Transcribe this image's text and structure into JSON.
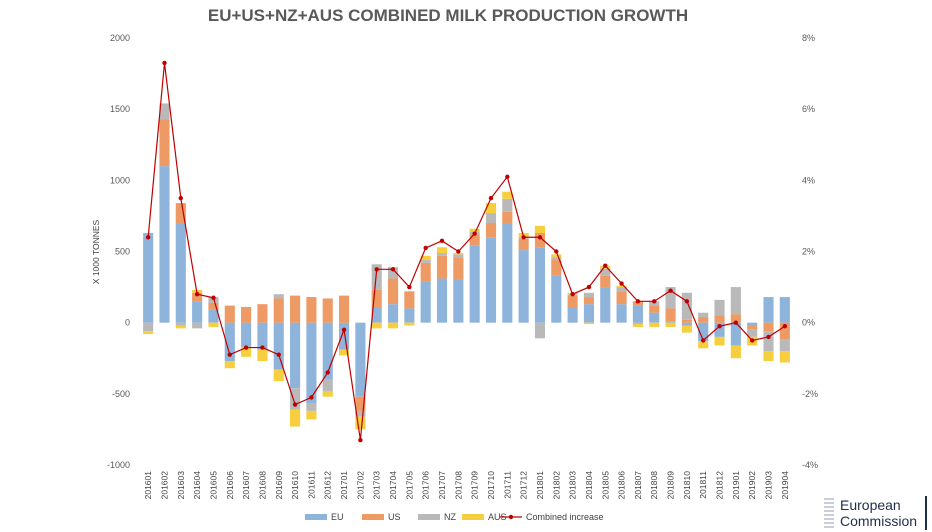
{
  "chart_data": {
    "type": "bar",
    "title": "EU+US+NZ+AUS COMBINED MILK PRODUCTION GROWTH",
    "ylabel": "X 1000 TONNES",
    "ylim": [
      -1000,
      2000
    ],
    "y_ticks": [
      "2000",
      "1500",
      "1000",
      "500",
      "0",
      "-500",
      "-1000"
    ],
    "y2lim": [
      -4,
      8
    ],
    "y2_ticks": [
      "8%",
      "6%",
      "4%",
      "2%",
      "0%",
      "-2%",
      "-4%"
    ],
    "categories": [
      "201601",
      "201602",
      "201603",
      "201604",
      "201605",
      "201606",
      "201607",
      "201608",
      "201609",
      "201610",
      "201611",
      "201612",
      "201701",
      "201702",
      "201703",
      "201704",
      "201705",
      "201706",
      "201707",
      "201708",
      "201709",
      "201710",
      "201711",
      "201712",
      "201801",
      "201802",
      "201803",
      "201804",
      "201805",
      "201806",
      "201807",
      "201808",
      "201809",
      "201810",
      "201811",
      "201812",
      "201901",
      "201902",
      "201903",
      "201904"
    ],
    "series": [
      {
        "name": "EU",
        "color": "#8fb4dc",
        "values": [
          630,
          1100,
          700,
          150,
          90,
          -270,
          -170,
          -190,
          -330,
          -460,
          -570,
          -400,
          -190,
          -520,
          110,
          130,
          100,
          290,
          310,
          300,
          540,
          600,
          700,
          510,
          530,
          330,
          110,
          130,
          250,
          130,
          120,
          70,
          10,
          -20,
          -130,
          -100,
          -160,
          -20,
          180,
          180
        ]
      },
      {
        "name": "US",
        "color": "#ed9a65",
        "values": [
          0,
          330,
          140,
          60,
          50,
          120,
          110,
          130,
          170,
          190,
          180,
          170,
          190,
          -100,
          120,
          180,
          120,
          130,
          160,
          160,
          80,
          100,
          80,
          80,
          100,
          110,
          80,
          50,
          80,
          90,
          30,
          50,
          90,
          20,
          40,
          50,
          60,
          -30,
          -60,
          -120
        ]
      },
      {
        "name": "NZ",
        "color": "#b9b9b9",
        "values": [
          -60,
          110,
          -20,
          -40,
          40,
          0,
          0,
          0,
          30,
          -150,
          -50,
          -80,
          0,
          -40,
          180,
          80,
          0,
          20,
          20,
          20,
          20,
          70,
          90,
          10,
          -110,
          20,
          10,
          30,
          50,
          30,
          -10,
          30,
          150,
          190,
          30,
          110,
          190,
          -50,
          -140,
          -80
        ]
      },
      {
        "name": "AUS",
        "color": "#f7ce3e",
        "values": [
          -20,
          0,
          -20,
          20,
          -30,
          -50,
          -70,
          -80,
          -80,
          -120,
          -60,
          -40,
          -40,
          -90,
          -40,
          -40,
          -20,
          30,
          40,
          10,
          20,
          70,
          50,
          30,
          50,
          20,
          10,
          -10,
          20,
          10,
          -20,
          -30,
          -30,
          -50,
          -50,
          -60,
          -90,
          -60,
          -70,
          -80
        ]
      },
      {
        "name": "Combined increase",
        "type": "line",
        "axis": "right",
        "color": "#c00000",
        "values": [
          2.4,
          7.3,
          3.5,
          0.8,
          0.7,
          -0.9,
          -0.7,
          -0.7,
          -0.9,
          -2.3,
          -2.1,
          -1.4,
          -0.2,
          -3.3,
          1.5,
          1.5,
          1.0,
          2.1,
          2.3,
          2.0,
          2.5,
          3.5,
          4.1,
          2.4,
          2.4,
          2.0,
          0.8,
          1.0,
          1.6,
          1.1,
          0.6,
          0.6,
          0.9,
          0.6,
          -0.5,
          -0.1,
          0.0,
          -0.5,
          -0.4,
          -0.1
        ]
      }
    ],
    "legend": [
      "EU",
      "US",
      "NZ",
      "AUS",
      "Combined increase"
    ],
    "legend_position": "bottom",
    "grid": false
  },
  "branding": {
    "line1": "European",
    "line2": "Commission"
  }
}
